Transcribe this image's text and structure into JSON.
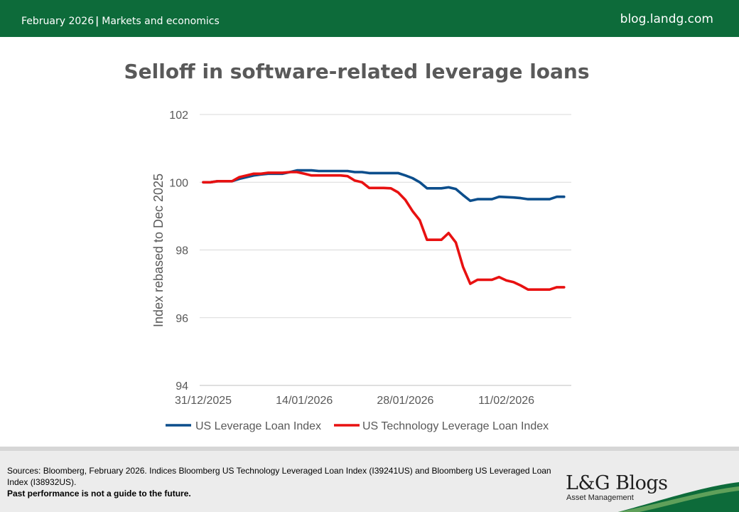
{
  "header": {
    "date": "February 2026",
    "separator": "|",
    "category": "Markets and economics",
    "site": "blog.landg.com"
  },
  "chart_data": {
    "type": "line",
    "title": "Selloff in software-related leverage loans",
    "ylabel": "Index rebased to Dec 2025",
    "xlabel": "",
    "ylim": [
      94,
      102
    ],
    "yticks": [
      "94",
      "96",
      "98",
      "100",
      "102"
    ],
    "xlim": [
      "2025-12-31",
      "2026-02-20"
    ],
    "xticks": [
      {
        "date": "2025-12-31",
        "label": "31/12/2025"
      },
      {
        "date": "2026-01-14",
        "label": "14/01/2026"
      },
      {
        "date": "2026-01-28",
        "label": "28/01/2026"
      },
      {
        "date": "2026-02-11",
        "label": "11/02/2026"
      }
    ],
    "grid": true,
    "legend_position": "bottom",
    "series": [
      {
        "name": "US Leverage Loan Index",
        "color": "#0c4e8c",
        "points": [
          [
            "2025-12-31",
            100.0
          ],
          [
            "2026-01-01",
            100.0
          ],
          [
            "2026-01-02",
            100.03
          ],
          [
            "2026-01-04",
            100.03
          ],
          [
            "2026-01-05",
            100.1
          ],
          [
            "2026-01-06",
            100.15
          ],
          [
            "2026-01-07",
            100.2
          ],
          [
            "2026-01-08",
            100.23
          ],
          [
            "2026-01-09",
            100.25
          ],
          [
            "2026-01-11",
            100.25
          ],
          [
            "2026-01-12",
            100.3
          ],
          [
            "2026-01-13",
            100.35
          ],
          [
            "2026-01-15",
            100.35
          ],
          [
            "2026-01-16",
            100.33
          ],
          [
            "2026-01-20",
            100.33
          ],
          [
            "2026-01-21",
            100.3
          ],
          [
            "2026-01-22",
            100.3
          ],
          [
            "2026-01-23",
            100.27
          ],
          [
            "2026-01-27",
            100.27
          ],
          [
            "2026-01-28",
            100.2
          ],
          [
            "2026-01-29",
            100.12
          ],
          [
            "2026-01-30",
            100.0
          ],
          [
            "2026-01-31",
            99.82
          ],
          [
            "2026-02-02",
            99.82
          ],
          [
            "2026-02-03",
            99.85
          ],
          [
            "2026-02-04",
            99.8
          ],
          [
            "2026-02-05",
            99.62
          ],
          [
            "2026-02-06",
            99.45
          ],
          [
            "2026-02-07",
            99.5
          ],
          [
            "2026-02-09",
            99.5
          ],
          [
            "2026-02-10",
            99.57
          ],
          [
            "2026-02-12",
            99.55
          ],
          [
            "2026-02-13",
            99.53
          ],
          [
            "2026-02-14",
            99.5
          ],
          [
            "2026-02-17",
            99.5
          ],
          [
            "2026-02-18",
            99.57
          ],
          [
            "2026-02-19",
            99.57
          ]
        ]
      },
      {
        "name": "US Technology Leverage Loan Index",
        "color": "#e81111",
        "points": [
          [
            "2025-12-31",
            100.0
          ],
          [
            "2026-01-01",
            100.0
          ],
          [
            "2026-01-02",
            100.03
          ],
          [
            "2026-01-04",
            100.03
          ],
          [
            "2026-01-05",
            100.15
          ],
          [
            "2026-01-06",
            100.2
          ],
          [
            "2026-01-07",
            100.25
          ],
          [
            "2026-01-08",
            100.25
          ],
          [
            "2026-01-09",
            100.28
          ],
          [
            "2026-01-11",
            100.28
          ],
          [
            "2026-01-12",
            100.3
          ],
          [
            "2026-01-13",
            100.3
          ],
          [
            "2026-01-14",
            100.25
          ],
          [
            "2026-01-15",
            100.2
          ],
          [
            "2026-01-19",
            100.2
          ],
          [
            "2026-01-20",
            100.18
          ],
          [
            "2026-01-21",
            100.05
          ],
          [
            "2026-01-22",
            100.0
          ],
          [
            "2026-01-23",
            99.83
          ],
          [
            "2026-01-25",
            99.83
          ],
          [
            "2026-01-26",
            99.82
          ],
          [
            "2026-01-27",
            99.7
          ],
          [
            "2026-01-28",
            99.48
          ],
          [
            "2026-01-29",
            99.15
          ],
          [
            "2026-01-30",
            98.88
          ],
          [
            "2026-01-31",
            98.3
          ],
          [
            "2026-02-02",
            98.3
          ],
          [
            "2026-02-03",
            98.5
          ],
          [
            "2026-02-04",
            98.22
          ],
          [
            "2026-02-05",
            97.5
          ],
          [
            "2026-02-06",
            97.0
          ],
          [
            "2026-02-07",
            97.12
          ],
          [
            "2026-02-09",
            97.12
          ],
          [
            "2026-02-10",
            97.2
          ],
          [
            "2026-02-11",
            97.1
          ],
          [
            "2026-02-12",
            97.05
          ],
          [
            "2026-02-13",
            96.95
          ],
          [
            "2026-02-14",
            96.83
          ],
          [
            "2026-02-17",
            96.83
          ],
          [
            "2026-02-18",
            96.9
          ],
          [
            "2026-02-19",
            96.9
          ]
        ]
      }
    ]
  },
  "footer": {
    "sources": "Sources: Bloomberg, February 2026. Indices Bloomberg US Technology Leveraged Loan Index (I39241US) and Bloomberg US Leveraged Loan Index (I38932US).",
    "disclaimer": "Past performance is not a guide to the future.",
    "brand": {
      "name": "L&G Blogs",
      "tagline": "Asset Management",
      "accent_color": "#0d6b3a"
    }
  }
}
